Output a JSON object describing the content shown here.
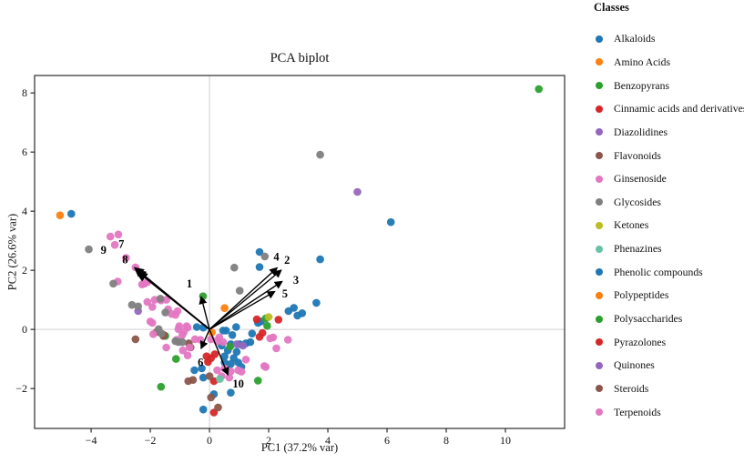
{
  "figure": {
    "title": "PCA biplot",
    "xlabel": "PC1 (37.2% var)",
    "ylabel": "PC2 (26.6% var)"
  },
  "legend": {
    "title": "Classes",
    "items": [
      {
        "label": "Alkaloids",
        "color": "#1f77b4"
      },
      {
        "label": "Amino Acids",
        "color": "#ff7f0e"
      },
      {
        "label": "Benzopyrans",
        "color": "#2ca02c"
      },
      {
        "label": "Cinnamic acids and derivatives",
        "color": "#d62728"
      },
      {
        "label": "Diazolidines",
        "color": "#9467bd"
      },
      {
        "label": "Flavonoids",
        "color": "#8c564b"
      },
      {
        "label": "Ginsenoside",
        "color": "#e377c2"
      },
      {
        "label": "Glycosides",
        "color": "#7f7f7f"
      },
      {
        "label": "Ketones",
        "color": "#bcbd22"
      },
      {
        "label": "Phenazines",
        "color": "#66c2a5"
      },
      {
        "label": "Phenolic compounds",
        "color": "#1f77b4"
      },
      {
        "label": "Polypeptides",
        "color": "#ff7f0e"
      },
      {
        "label": "Polysaccharides",
        "color": "#2ca02c"
      },
      {
        "label": "Pyrazolones",
        "color": "#d62728"
      },
      {
        "label": "Quinones",
        "color": "#9467bd"
      },
      {
        "label": "Steroids",
        "color": "#8c564b"
      },
      {
        "label": "Terpenoids",
        "color": "#e377c2"
      }
    ]
  },
  "chart_data": {
    "type": "scatter",
    "title": "PCA biplot",
    "xlabel": "PC1 (37.2% var)",
    "ylabel": "PC2 (26.6% var)",
    "xlim": [
      -5.91,
      12.0
    ],
    "ylim": [
      -3.35,
      8.59
    ],
    "x_ticks": [
      {
        "v": -4,
        "label": "−4"
      },
      {
        "v": -2,
        "label": "−2"
      },
      {
        "v": 0,
        "label": "0"
      },
      {
        "v": 2,
        "label": "2"
      },
      {
        "v": 4,
        "label": "4"
      },
      {
        "v": 6,
        "label": "6"
      },
      {
        "v": 8,
        "label": "8"
      },
      {
        "v": 10,
        "label": "10"
      }
    ],
    "y_ticks": [
      {
        "v": -2,
        "label": "−2"
      },
      {
        "v": 0,
        "label": "0"
      },
      {
        "v": 2,
        "label": "2"
      },
      {
        "v": 4,
        "label": "4"
      },
      {
        "v": 6,
        "label": "6"
      },
      {
        "v": 8,
        "label": "8"
      }
    ],
    "grid": "zero-lines-only",
    "zero_line_color": "#cfcfd8",
    "legend_position": "right-outside",
    "series": [
      {
        "classes": [
          "Alkaloids",
          "Phenolic compounds"
        ],
        "color": "#1f77b4",
        "points": [
          [
            -4.67,
            3.91
          ],
          [
            6.13,
            3.63
          ],
          [
            3.74,
            2.37
          ],
          [
            1.69,
            2.62
          ],
          [
            1.69,
            2.11
          ],
          [
            2.85,
            0.73
          ],
          [
            3.13,
            0.55
          ],
          [
            3.61,
            0.9
          ],
          [
            2.67,
            0.62
          ],
          [
            2.97,
            0.47
          ],
          [
            1.64,
            0.22
          ],
          [
            1.74,
            0.27
          ],
          [
            1.44,
            -0.14
          ],
          [
            -0.43,
            0.08
          ],
          [
            -0.21,
            0.06
          ],
          [
            0.56,
            -0.04
          ],
          [
            0.9,
            0.08
          ],
          [
            0.77,
            -0.19
          ],
          [
            0.46,
            -0.04
          ],
          [
            0.41,
            -0.55
          ],
          [
            0.72,
            -0.5
          ],
          [
            1.02,
            -0.5
          ],
          [
            0.62,
            -0.71
          ],
          [
            0.92,
            -0.76
          ],
          [
            1.38,
            -0.43
          ],
          [
            1.23,
            -0.47
          ],
          [
            0.51,
            -0.91
          ],
          [
            0.82,
            -0.97
          ],
          [
            0.51,
            -1.12
          ],
          [
            0.72,
            -1.17
          ],
          [
            0.97,
            -1.12
          ],
          [
            1.08,
            -1.27
          ],
          [
            -0.51,
            -1.38
          ],
          [
            -0.26,
            -1.32
          ],
          [
            -0.21,
            -1.63
          ],
          [
            0.72,
            -2.14
          ],
          [
            0.15,
            -2.19
          ],
          [
            -0.21,
            -2.71
          ]
        ]
      },
      {
        "classes": [
          "Amino Acids",
          "Polypeptides"
        ],
        "color": "#ff7f0e",
        "points": [
          [
            -5.05,
            3.86
          ],
          [
            0.51,
            0.72
          ],
          [
            0.08,
            -0.1
          ]
        ]
      },
      {
        "classes": [
          "Benzopyrans",
          "Polysaccharides"
        ],
        "color": "#2ca02c",
        "points": [
          [
            11.13,
            8.13
          ],
          [
            -0.22,
            1.12
          ],
          [
            -1.13,
            -1.0
          ],
          [
            -1.49,
            -0.22
          ],
          [
            -1.64,
            -1.94
          ],
          [
            1.64,
            -1.73
          ],
          [
            0.7,
            -0.58
          ],
          [
            1.9,
            0.37
          ],
          [
            1.95,
            0.12
          ]
        ]
      },
      {
        "classes": [
          "Cinnamic acids and derivatives",
          "Pyrazolones"
        ],
        "color": "#d62728",
        "points": [
          [
            2.33,
            0.33
          ],
          [
            1.6,
            0.34
          ],
          [
            1.79,
            -0.12
          ],
          [
            1.69,
            -0.25
          ],
          [
            -0.1,
            -0.91
          ],
          [
            0.05,
            -0.97
          ],
          [
            0.18,
            -0.84
          ],
          [
            -0.05,
            -1.1
          ],
          [
            0.15,
            -1.75
          ],
          [
            0.15,
            -2.81
          ]
        ]
      },
      {
        "classes": [
          "Diazolidines",
          "Quinones"
        ],
        "color": "#9467bd",
        "points": [
          [
            5.0,
            4.65
          ],
          [
            -2.41,
            0.62
          ],
          [
            0.92,
            -0.5
          ],
          [
            1.13,
            -0.55
          ]
        ]
      },
      {
        "classes": [
          "Flavonoids",
          "Steroids"
        ],
        "color": "#8c564b",
        "points": [
          [
            -2.5,
            -0.33
          ],
          [
            -1.79,
            -0.09
          ],
          [
            -1.56,
            -0.22
          ],
          [
            -1.54,
            -0.19
          ],
          [
            -0.7,
            -0.47
          ],
          [
            -0.64,
            -0.61
          ],
          [
            -0.72,
            -1.75
          ],
          [
            -0.56,
            -1.71
          ],
          [
            0.0,
            -1.58
          ],
          [
            0.05,
            -2.3
          ],
          [
            0.29,
            -2.64
          ]
        ]
      },
      {
        "classes": [
          "Ginsenoside",
          "Terpenoids"
        ],
        "color": "#e377c2",
        "points": [
          [
            -3.35,
            3.14
          ],
          [
            -3.08,
            3.21
          ],
          [
            -3.2,
            2.86
          ],
          [
            -2.82,
            2.42
          ],
          [
            -2.5,
            2.1
          ],
          [
            -2.28,
            1.52
          ],
          [
            -2.1,
            1.6
          ],
          [
            -2.2,
            1.55
          ],
          [
            -3.1,
            1.62
          ],
          [
            -2.1,
            0.93
          ],
          [
            -1.85,
            1.0
          ],
          [
            -1.64,
            0.98
          ],
          [
            -1.46,
            1.0
          ],
          [
            -1.93,
            0.76
          ],
          [
            -1.4,
            0.68
          ],
          [
            -1.28,
            0.52
          ],
          [
            -1.15,
            0.49
          ],
          [
            -1.08,
            0.62
          ],
          [
            -2.0,
            0.27
          ],
          [
            -1.93,
            0.22
          ],
          [
            -1.9,
            -0.16
          ],
          [
            -1.46,
            -0.61
          ],
          [
            -1.02,
            0.11
          ],
          [
            -0.77,
            0.11
          ],
          [
            -1.05,
            0.01
          ],
          [
            -0.74,
            0.06
          ],
          [
            -0.92,
            -0.19
          ],
          [
            -1.11,
            -0.35
          ],
          [
            -0.9,
            -0.71
          ],
          [
            -0.74,
            -0.88
          ],
          [
            -0.67,
            -0.61
          ],
          [
            -0.49,
            -0.33
          ],
          [
            -0.31,
            -0.35
          ],
          [
            0.05,
            -0.33
          ],
          [
            0.26,
            -0.4
          ],
          [
            0.46,
            -0.43
          ],
          [
            0.33,
            -0.27
          ],
          [
            -0.87,
            -0.09
          ],
          [
            0.26,
            -1.38
          ],
          [
            0.51,
            -1.32
          ],
          [
            0.72,
            -1.42
          ],
          [
            0.97,
            -1.38
          ],
          [
            0.41,
            -1.58
          ],
          [
            0.67,
            -1.63
          ],
          [
            1.85,
            -1.24
          ],
          [
            1.08,
            -1.43
          ],
          [
            1.23,
            -1.02
          ],
          [
            1.9,
            -1.27
          ],
          [
            2.05,
            -0.3
          ],
          [
            2.26,
            -0.64
          ],
          [
            2.15,
            -0.27
          ],
          [
            2.65,
            -0.35
          ]
        ]
      },
      {
        "classes": [
          "Glycosides"
        ],
        "color": "#7f7f7f",
        "points": [
          [
            -4.08,
            2.71
          ],
          [
            -3.25,
            1.55
          ],
          [
            -2.62,
            0.83
          ],
          [
            -2.41,
            0.78
          ],
          [
            -1.66,
            1.04
          ],
          [
            -1.49,
            0.57
          ],
          [
            -1.72,
            0.01
          ],
          [
            -1.62,
            -0.14
          ],
          [
            -1.15,
            -0.4
          ],
          [
            -1.05,
            -0.43
          ],
          [
            -0.92,
            -0.43
          ],
          [
            0.84,
            2.09
          ],
          [
            1.02,
            1.31
          ],
          [
            1.87,
            2.47
          ],
          [
            3.74,
            5.91
          ]
        ]
      },
      {
        "classes": [
          "Ketones"
        ],
        "color": "#bcbd22",
        "points": [
          [
            2.0,
            0.42
          ]
        ]
      },
      {
        "classes": [
          "Phenazines"
        ],
        "color": "#66c2a5",
        "points": [
          [
            0.35,
            -1.68
          ]
        ]
      }
    ],
    "arrows": [
      {
        "label": "1",
        "tip_x": -0.28,
        "tip_y": 1.1,
        "label_x": -0.68,
        "label_y": 1.55,
        "width": 1.4
      },
      {
        "label": "2",
        "tip_x": 2.42,
        "tip_y": 2.0,
        "label_x": 2.62,
        "label_y": 2.35,
        "width": 1.4
      },
      {
        "label": "3",
        "tip_x": 2.45,
        "tip_y": 1.62,
        "label_x": 2.92,
        "label_y": 1.66,
        "width": 1.4
      },
      {
        "label": "4",
        "tip_x": 2.28,
        "tip_y": 2.08,
        "label_x": 2.26,
        "label_y": 2.45,
        "width": 1.4
      },
      {
        "label": "5",
        "tip_x": 2.2,
        "tip_y": 1.28,
        "label_x": 2.55,
        "label_y": 1.2,
        "width": 1.4
      },
      {
        "label": "6",
        "tip_x": -0.28,
        "tip_y": -0.64,
        "label_x": -0.3,
        "label_y": -1.12,
        "width": 1.4
      },
      {
        "label": "7",
        "tip_x": -2.52,
        "tip_y": 2.08,
        "label_x": -2.98,
        "label_y": 2.88,
        "width": 1.7
      },
      {
        "label": "8",
        "tip_x": -2.45,
        "tip_y": 2.0,
        "label_x": -2.85,
        "label_y": 2.36,
        "width": 1.7
      },
      {
        "label": "9",
        "tip_x": -2.4,
        "tip_y": 1.93,
        "label_x": -3.58,
        "label_y": 2.68,
        "width": 1.7
      },
      {
        "label": "10",
        "tip_x": 0.62,
        "tip_y": -1.53,
        "label_x": 0.97,
        "label_y": -1.84,
        "width": 1.4
      }
    ]
  }
}
